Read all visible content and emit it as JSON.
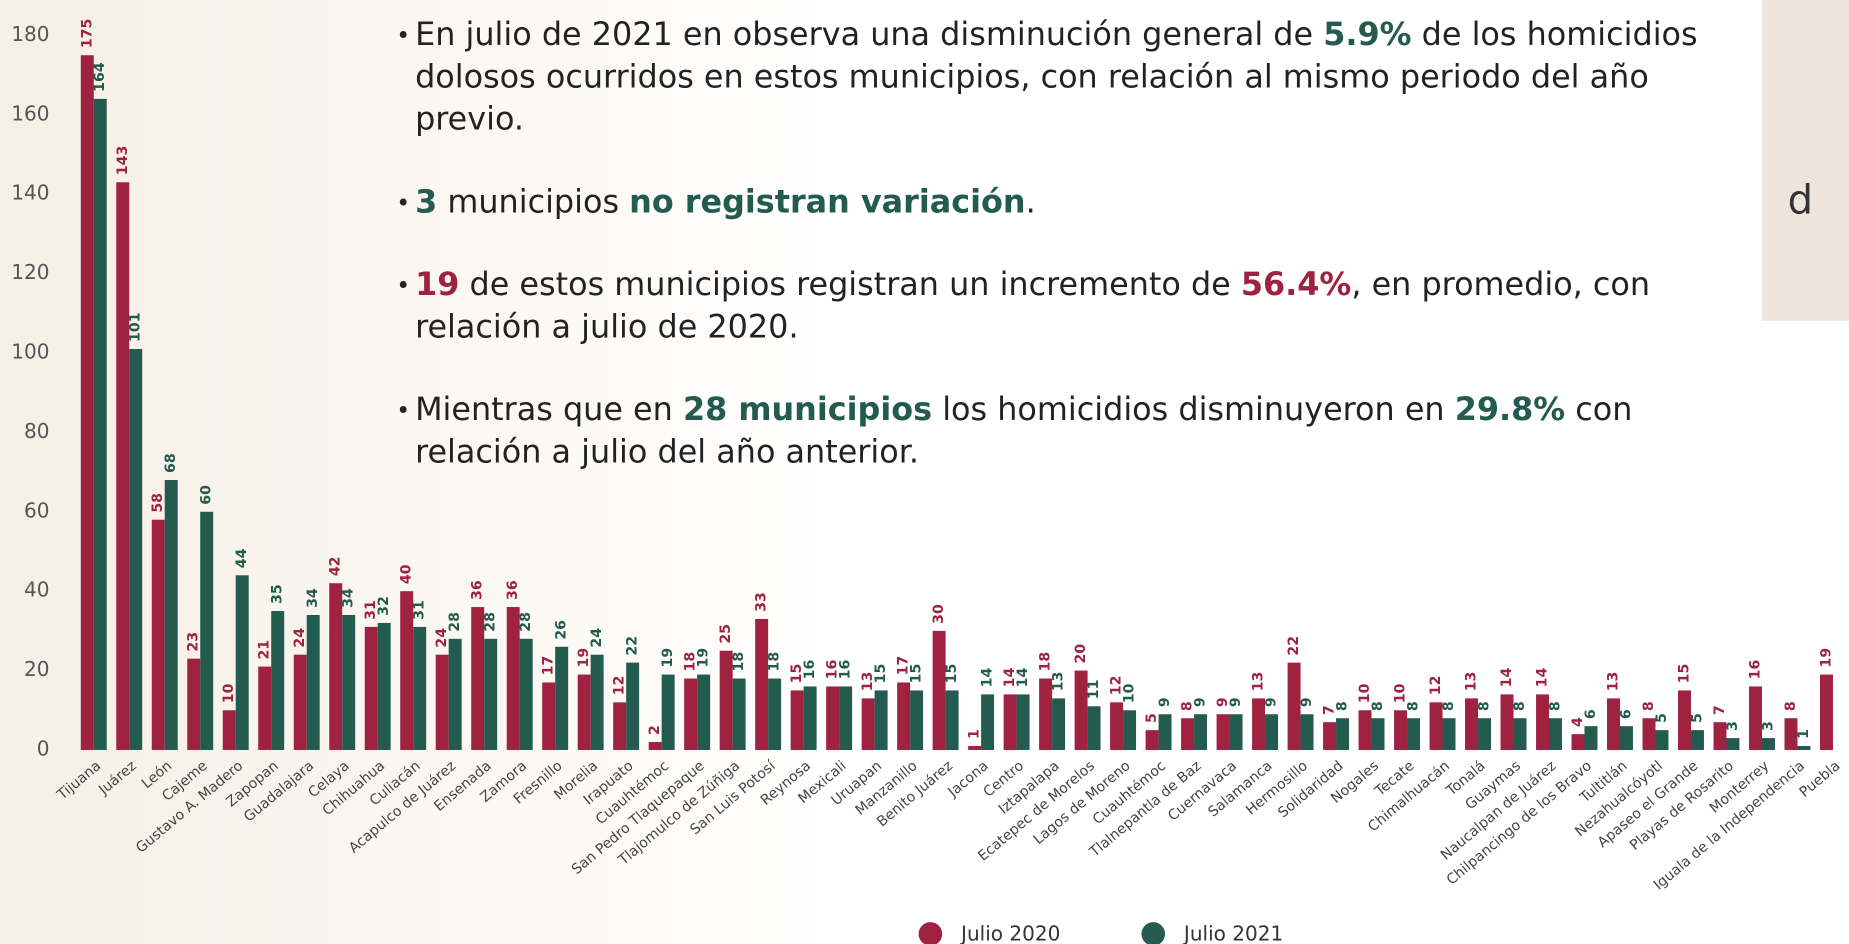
{
  "chart_data": {
    "type": "bar",
    "categories": [
      "Tijuana",
      "Juárez",
      "León",
      "Cajeme",
      "Gustavo A. Madero",
      "Zapopan",
      "Guadalajara",
      "Celaya",
      "Chihuahua",
      "Culiacán",
      "Acapulco de Juárez",
      "Ensenada",
      "Zamora",
      "Fresnillo",
      "Morelia",
      "Irapuato",
      "Cuauhtémoc",
      "San Pedro Tlaquepaque",
      "Tlajomulco de Zúñiga",
      "San Luis Potosí",
      "Reynosa",
      "Mexicali",
      "Uruapan",
      "Manzanillo",
      "Benito Juárez",
      "Jacona",
      "Centro",
      "Iztapalapa",
      "Ecatepec de Morelos",
      "Lagos de Moreno",
      "Cuauhtémoc",
      "Tlalnepantla de Baz",
      "Cuernavaca",
      "Salamanca",
      "Hermosillo",
      "Solidaridad",
      "Nogales",
      "Tecate",
      "Chimalhuacán",
      "Tonalá",
      "Guaymas",
      "Naucalpan de Juárez",
      "Chilpancingo de los Bravo",
      "Tultitlán",
      "Nezahualcóyotl",
      "Apaseo el Grande",
      "Playas de Rosarito",
      "Monterrey",
      "Iguala de la Independencia",
      "Puebla"
    ],
    "series": [
      {
        "name": "Julio 2020",
        "color": "#9f2241",
        "values": [
          175,
          143,
          58,
          23,
          10,
          21,
          24,
          42,
          31,
          40,
          24,
          36,
          36,
          17,
          19,
          12,
          2,
          18,
          25,
          33,
          15,
          16,
          13,
          17,
          30,
          1,
          14,
          18,
          20,
          12,
          5,
          8,
          9,
          13,
          22,
          7,
          10,
          10,
          12,
          13,
          14,
          14,
          4,
          13,
          8,
          15,
          7,
          16,
          8,
          19
        ]
      },
      {
        "name": "Julio 2021",
        "color": "#235b4e",
        "values": [
          164,
          101,
          68,
          60,
          44,
          35,
          34,
          34,
          32,
          31,
          28,
          28,
          28,
          26,
          24,
          22,
          19,
          19,
          18,
          18,
          16,
          16,
          15,
          15,
          15,
          14,
          14,
          13,
          11,
          10,
          9,
          9,
          9,
          9,
          9,
          8,
          8,
          8,
          8,
          8,
          8,
          8,
          6,
          6,
          5,
          5,
          3,
          3,
          1,
          null
        ]
      }
    ],
    "ylim": [
      0,
      180
    ],
    "yticks": [
      0,
      20,
      40,
      60,
      80,
      100,
      120,
      140,
      160,
      180
    ],
    "grid": false
  },
  "bullets": [
    [
      {
        "text": "En julio de 2021 en observa una disminución general de "
      },
      {
        "text": "5.9%",
        "color": "#235b4e"
      },
      {
        "text": " de los homicidios dolosos ocurridos en estos municipios, con relación al mismo periodo del año previo."
      }
    ],
    [
      {
        "text": "3",
        "color": "#235b4e"
      },
      {
        "text": " municipios "
      },
      {
        "text": "no registran variación",
        "color": "#235b4e"
      },
      {
        "text": "."
      }
    ],
    [
      {
        "text": "19",
        "color": "#9f2241"
      },
      {
        "text": " de estos municipios registran un incremento de "
      },
      {
        "text": "56.4%",
        "color": "#9f2241"
      },
      {
        "text": ", en promedio, con relación a julio de 2020."
      }
    ],
    [
      {
        "text": "Mientras que en "
      },
      {
        "text": "28 municipios",
        "color": "#235b4e"
      },
      {
        "text": " los homicidios disminuyeron en "
      },
      {
        "text": "29.8%",
        "color": "#235b4e"
      },
      {
        "text": " con relación a julio del año anterior."
      }
    ]
  ],
  "side_panel": {
    "text": "d"
  }
}
